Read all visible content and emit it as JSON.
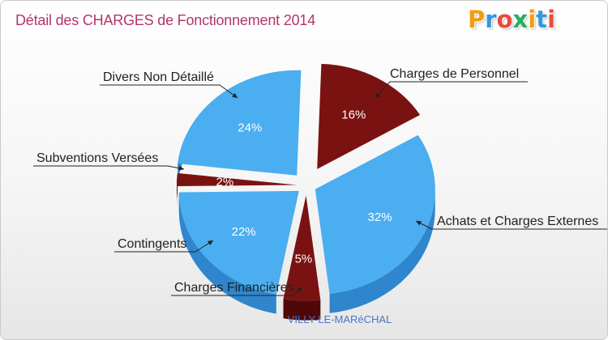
{
  "title": "Détail des CHARGES de Fonctionnement 2014",
  "logo": {
    "text": "Proxiti",
    "letters": [
      "P",
      "r",
      "o",
      "x",
      "i",
      "t",
      "i"
    ],
    "colors": [
      "#f39c12",
      "#3498db",
      "#e74c3c",
      "#27ae60",
      "#f39c12",
      "#3498db",
      "#e74c3c"
    ]
  },
  "commune": "VILLY-LE-MARéCHAL",
  "colors": {
    "blue": "#4aaef0",
    "blue_side": "#2f86cc",
    "red": "#7a1212",
    "red_side": "#4e0808"
  },
  "chart_data": {
    "type": "pie",
    "title": "Détail des CHARGES de Fonctionnement 2014",
    "slices": [
      {
        "label": "Charges de Personnel",
        "percent_label": "16%",
        "value": 16,
        "color": "red"
      },
      {
        "label": "Achats et Charges Externes",
        "percent_label": "32%",
        "value": 32,
        "color": "blue"
      },
      {
        "label": "Charges Financières",
        "percent_label": "5%",
        "value": 5,
        "color": "red"
      },
      {
        "label": "Contingents",
        "percent_label": "22%",
        "value": 22,
        "color": "blue"
      },
      {
        "label": "Subventions Versées",
        "percent_label": "2%",
        "value": 2,
        "color": "red"
      },
      {
        "label": "Divers Non Détaillé",
        "percent_label": "24%",
        "value": 24,
        "color": "blue"
      }
    ]
  }
}
